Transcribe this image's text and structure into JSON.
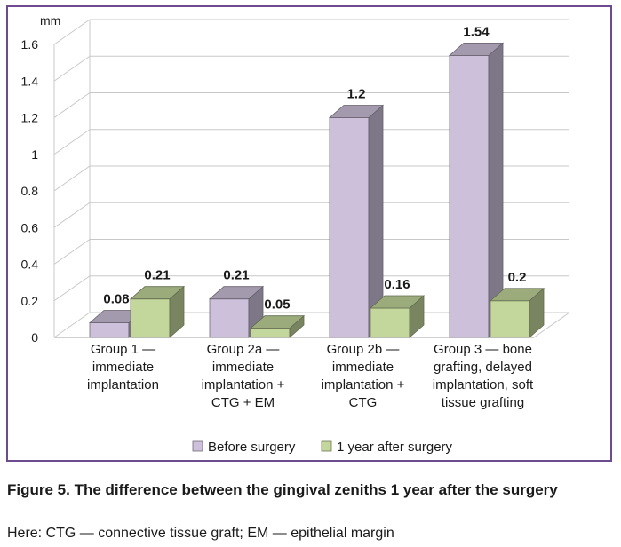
{
  "chart_data": {
    "type": "bar",
    "ylabel": "mm",
    "ylim": [
      0,
      1.6
    ],
    "yticks": [
      "0",
      "0.2",
      "0.4",
      "0.6",
      "0.8",
      "1",
      "1.2",
      "1.4",
      "1.6"
    ],
    "grid": true,
    "legend_position": "bottom",
    "categories": [
      [
        "Group 1 —",
        "immediate",
        "implantation"
      ],
      [
        "Group 2a —",
        "immediate",
        "implantation +",
        "CTG + EM"
      ],
      [
        "Group 2b —",
        "immediate",
        "implantation +",
        "CTG"
      ],
      [
        "Group 3 — bone",
        "grafting, delayed",
        "implantation, soft",
        "tissue grafting"
      ]
    ],
    "series": [
      {
        "name": "Before surgery",
        "values": [
          0.08,
          0.21,
          1.2,
          1.54
        ],
        "labels": [
          "0.08",
          "0.21",
          "1.2",
          "1.54"
        ],
        "color": "#ccc0da"
      },
      {
        "name": "1 year after surgery",
        "values": [
          0.21,
          0.05,
          0.16,
          0.2
        ],
        "labels": [
          "0.21",
          "0.05",
          "0.16",
          "0.2"
        ],
        "color": "#c3d69b"
      }
    ]
  },
  "caption": {
    "title": "Figure 5. The difference between the gingival zeniths 1 year after the surgery",
    "note": "Here: CTG — connective tissue graft; EM — epithelial margin"
  }
}
